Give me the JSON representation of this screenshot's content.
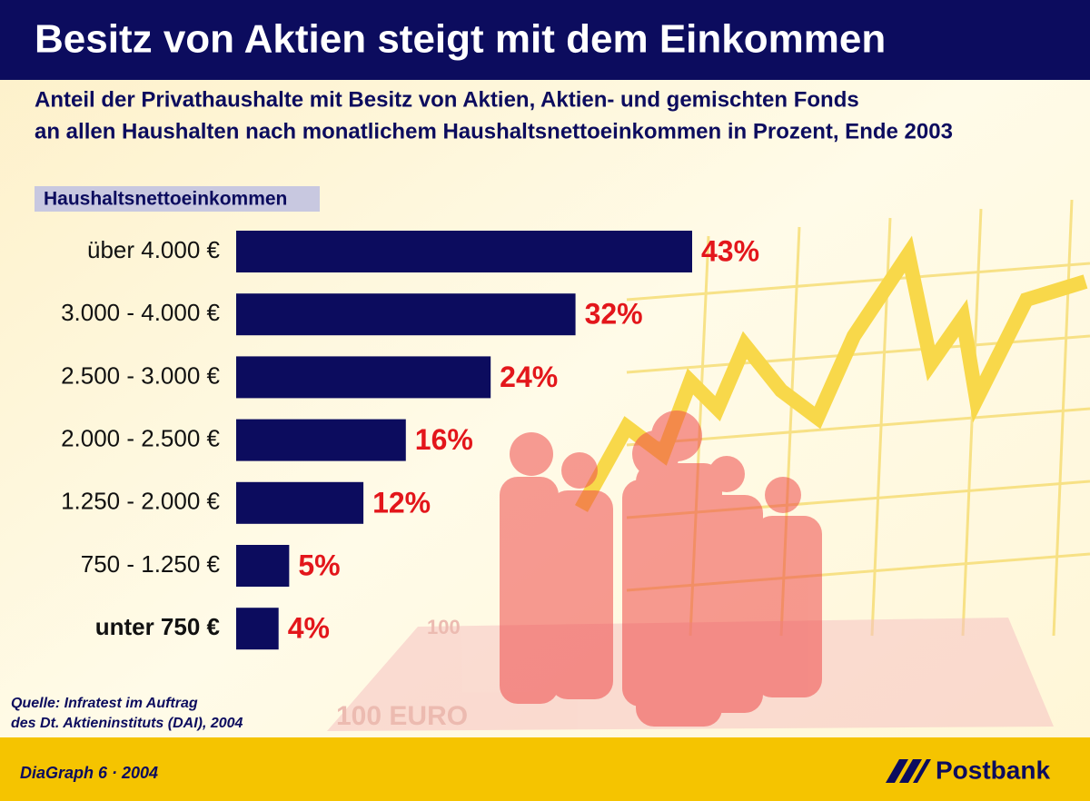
{
  "chart_data": {
    "type": "bar",
    "orientation": "horizontal",
    "title": "Besitz von Aktien steigt mit dem Einkommen",
    "subtitle": [
      "Anteil der Privathaushalte mit Besitz von Aktien, Aktien- und gemischten Fonds",
      "an allen Haushalten nach monatlichem Haushaltsnettoeinkommen in Prozent, Ende 2003"
    ],
    "axis_label": "Haushaltsnettoeinkommen",
    "categories": [
      "über 4.000 €",
      "3.000 - 4.000 €",
      "2.500 - 3.000 €",
      "2.000 - 2.500 €",
      "1.250 - 2.000 €",
      "750 - 1.250 €",
      "unter 750 €"
    ],
    "values": [
      43,
      32,
      24,
      16,
      12,
      5,
      4
    ],
    "value_labels": [
      "43%",
      "32%",
      "24%",
      "16%",
      "12%",
      "5%",
      "4%"
    ],
    "color": "#0c0c5e",
    "label_color": "#e3161b",
    "source": [
      "Quelle: Infratest im Auftrag",
      "des Dt. Aktieninstituts (DAI), 2004"
    ]
  },
  "footer": {
    "left": "DiaGraph 6 · 2004",
    "brand": "Postbank"
  }
}
